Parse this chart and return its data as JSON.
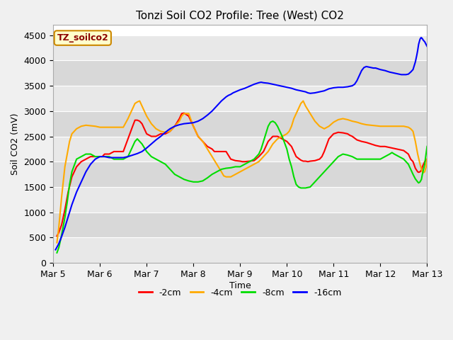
{
  "title": "Tonzi Soil CO2 Profile: Tree (West) CO2",
  "xlabel": "Time",
  "ylabel": "Soil CO2 (mV)",
  "xlim": [
    0,
    8.0
  ],
  "ylim": [
    0,
    4700
  ],
  "yticks": [
    0,
    500,
    1000,
    1500,
    2000,
    2500,
    3000,
    3500,
    4000,
    4500
  ],
  "xtick_labels": [
    "Mar 5",
    "Mar 6",
    "Mar 7",
    "Mar 8",
    "Mar 9",
    "Mar 10",
    "Mar 11",
    "Mar 12",
    "Mar 13"
  ],
  "xtick_positions": [
    0,
    1,
    2,
    3,
    4,
    5,
    6,
    7,
    8
  ],
  "fig_bg_color": "#f0f0f0",
  "plot_bg_color": "#ffffff",
  "band_colors": [
    "#e8e8e8",
    "#d8d8d8"
  ],
  "legend_label": "TZ_soilco2",
  "legend_box_color": "#ffffcc",
  "legend_box_edge": "#cc8800",
  "colors": {
    "2cm": "#ff0000",
    "4cm": "#ffaa00",
    "8cm": "#00dd00",
    "16cm": "#0000ff"
  },
  "series": {
    "2cm": [
      [
        0.08,
        530
      ],
      [
        0.12,
        600
      ],
      [
        0.18,
        750
      ],
      [
        0.25,
        1050
      ],
      [
        0.32,
        1400
      ],
      [
        0.4,
        1700
      ],
      [
        0.5,
        1900
      ],
      [
        0.6,
        2000
      ],
      [
        0.7,
        2050
      ],
      [
        0.8,
        2100
      ],
      [
        0.9,
        2100
      ],
      [
        1.0,
        2100
      ],
      [
        1.05,
        2100
      ],
      [
        1.1,
        2150
      ],
      [
        1.2,
        2150
      ],
      [
        1.3,
        2200
      ],
      [
        1.4,
        2200
      ],
      [
        1.5,
        2200
      ],
      [
        1.6,
        2450
      ],
      [
        1.7,
        2700
      ],
      [
        1.75,
        2820
      ],
      [
        1.8,
        2820
      ],
      [
        1.85,
        2800
      ],
      [
        1.9,
        2750
      ],
      [
        2.0,
        2550
      ],
      [
        2.1,
        2500
      ],
      [
        2.2,
        2500
      ],
      [
        2.3,
        2550
      ],
      [
        2.4,
        2550
      ],
      [
        2.5,
        2600
      ],
      [
        2.6,
        2700
      ],
      [
        2.7,
        2850
      ],
      [
        2.75,
        2950
      ],
      [
        2.8,
        2960
      ],
      [
        2.9,
        2900
      ],
      [
        3.0,
        2700
      ],
      [
        3.1,
        2500
      ],
      [
        3.2,
        2400
      ],
      [
        3.3,
        2300
      ],
      [
        3.4,
        2250
      ],
      [
        3.45,
        2200
      ],
      [
        3.5,
        2200
      ],
      [
        3.55,
        2200
      ],
      [
        3.6,
        2200
      ],
      [
        3.7,
        2200
      ],
      [
        3.8,
        2050
      ],
      [
        3.9,
        2020
      ],
      [
        4.0,
        2010
      ],
      [
        4.05,
        2000
      ],
      [
        4.1,
        2000
      ],
      [
        4.2,
        2010
      ],
      [
        4.3,
        2020
      ],
      [
        4.4,
        2100
      ],
      [
        4.5,
        2200
      ],
      [
        4.6,
        2400
      ],
      [
        4.7,
        2500
      ],
      [
        4.8,
        2500
      ],
      [
        4.9,
        2450
      ],
      [
        5.0,
        2400
      ],
      [
        5.05,
        2350
      ],
      [
        5.1,
        2300
      ],
      [
        5.15,
        2200
      ],
      [
        5.2,
        2100
      ],
      [
        5.3,
        2030
      ],
      [
        5.35,
        2010
      ],
      [
        5.4,
        2010
      ],
      [
        5.45,
        2000
      ],
      [
        5.5,
        2010
      ],
      [
        5.6,
        2020
      ],
      [
        5.7,
        2050
      ],
      [
        5.75,
        2100
      ],
      [
        5.8,
        2200
      ],
      [
        5.9,
        2450
      ],
      [
        6.0,
        2550
      ],
      [
        6.1,
        2580
      ],
      [
        6.2,
        2570
      ],
      [
        6.3,
        2550
      ],
      [
        6.35,
        2520
      ],
      [
        6.4,
        2500
      ],
      [
        6.5,
        2430
      ],
      [
        6.6,
        2400
      ],
      [
        6.7,
        2380
      ],
      [
        6.8,
        2350
      ],
      [
        6.9,
        2320
      ],
      [
        7.0,
        2300
      ],
      [
        7.1,
        2300
      ],
      [
        7.2,
        2280
      ],
      [
        7.3,
        2260
      ],
      [
        7.4,
        2240
      ],
      [
        7.5,
        2220
      ],
      [
        7.6,
        2150
      ],
      [
        7.65,
        2050
      ],
      [
        7.7,
        2000
      ],
      [
        7.75,
        1870
      ],
      [
        7.8,
        1800
      ],
      [
        7.82,
        1790
      ],
      [
        7.85,
        1800
      ],
      [
        7.88,
        1830
      ],
      [
        7.9,
        1900
      ],
      [
        7.95,
        2000
      ],
      [
        8.0,
        2050
      ]
    ],
    "4cm": [
      [
        0.08,
        400
      ],
      [
        0.12,
        700
      ],
      [
        0.18,
        1300
      ],
      [
        0.25,
        1900
      ],
      [
        0.3,
        2150
      ],
      [
        0.35,
        2400
      ],
      [
        0.4,
        2550
      ],
      [
        0.5,
        2650
      ],
      [
        0.6,
        2700
      ],
      [
        0.7,
        2720
      ],
      [
        0.8,
        2710
      ],
      [
        0.9,
        2700
      ],
      [
        1.0,
        2680
      ],
      [
        1.1,
        2680
      ],
      [
        1.2,
        2680
      ],
      [
        1.3,
        2680
      ],
      [
        1.4,
        2680
      ],
      [
        1.5,
        2680
      ],
      [
        1.6,
        2850
      ],
      [
        1.7,
        3050
      ],
      [
        1.75,
        3150
      ],
      [
        1.8,
        3180
      ],
      [
        1.85,
        3200
      ],
      [
        1.9,
        3100
      ],
      [
        2.0,
        2900
      ],
      [
        2.1,
        2750
      ],
      [
        2.2,
        2650
      ],
      [
        2.3,
        2600
      ],
      [
        2.4,
        2580
      ],
      [
        2.5,
        2600
      ],
      [
        2.6,
        2700
      ],
      [
        2.7,
        2800
      ],
      [
        2.75,
        2900
      ],
      [
        2.8,
        2950
      ],
      [
        2.9,
        2950
      ],
      [
        3.0,
        2700
      ],
      [
        3.1,
        2500
      ],
      [
        3.2,
        2400
      ],
      [
        3.3,
        2250
      ],
      [
        3.4,
        2100
      ],
      [
        3.5,
        1950
      ],
      [
        3.6,
        1800
      ],
      [
        3.65,
        1720
      ],
      [
        3.7,
        1700
      ],
      [
        3.8,
        1700
      ],
      [
        3.9,
        1750
      ],
      [
        4.0,
        1800
      ],
      [
        4.1,
        1850
      ],
      [
        4.2,
        1900
      ],
      [
        4.3,
        1950
      ],
      [
        4.4,
        2000
      ],
      [
        4.5,
        2100
      ],
      [
        4.6,
        2200
      ],
      [
        4.7,
        2350
      ],
      [
        4.8,
        2450
      ],
      [
        4.9,
        2500
      ],
      [
        5.0,
        2550
      ],
      [
        5.05,
        2600
      ],
      [
        5.1,
        2700
      ],
      [
        5.15,
        2850
      ],
      [
        5.2,
        2950
      ],
      [
        5.25,
        3050
      ],
      [
        5.3,
        3150
      ],
      [
        5.35,
        3200
      ],
      [
        5.4,
        3100
      ],
      [
        5.5,
        2950
      ],
      [
        5.6,
        2800
      ],
      [
        5.7,
        2700
      ],
      [
        5.8,
        2650
      ],
      [
        5.9,
        2700
      ],
      [
        6.0,
        2780
      ],
      [
        6.1,
        2830
      ],
      [
        6.2,
        2850
      ],
      [
        6.3,
        2830
      ],
      [
        6.4,
        2800
      ],
      [
        6.5,
        2780
      ],
      [
        6.6,
        2750
      ],
      [
        6.7,
        2730
      ],
      [
        6.8,
        2720
      ],
      [
        6.9,
        2710
      ],
      [
        7.0,
        2700
      ],
      [
        7.1,
        2700
      ],
      [
        7.2,
        2700
      ],
      [
        7.3,
        2700
      ],
      [
        7.4,
        2700
      ],
      [
        7.5,
        2700
      ],
      [
        7.6,
        2680
      ],
      [
        7.65,
        2650
      ],
      [
        7.7,
        2600
      ],
      [
        7.75,
        2400
      ],
      [
        7.8,
        2150
      ],
      [
        7.85,
        1950
      ],
      [
        7.88,
        1850
      ],
      [
        7.9,
        1800
      ],
      [
        7.92,
        1780
      ],
      [
        7.95,
        1800
      ],
      [
        7.98,
        1900
      ],
      [
        8.0,
        2050
      ]
    ],
    "8cm": [
      [
        0.08,
        200
      ],
      [
        0.12,
        300
      ],
      [
        0.18,
        550
      ],
      [
        0.25,
        900
      ],
      [
        0.3,
        1200
      ],
      [
        0.35,
        1550
      ],
      [
        0.4,
        1800
      ],
      [
        0.5,
        2050
      ],
      [
        0.6,
        2100
      ],
      [
        0.7,
        2150
      ],
      [
        0.8,
        2150
      ],
      [
        0.9,
        2100
      ],
      [
        1.0,
        2100
      ],
      [
        1.1,
        2100
      ],
      [
        1.2,
        2100
      ],
      [
        1.3,
        2050
      ],
      [
        1.4,
        2050
      ],
      [
        1.5,
        2050
      ],
      [
        1.6,
        2100
      ],
      [
        1.7,
        2300
      ],
      [
        1.75,
        2400
      ],
      [
        1.8,
        2450
      ],
      [
        1.9,
        2350
      ],
      [
        2.0,
        2200
      ],
      [
        2.1,
        2100
      ],
      [
        2.2,
        2050
      ],
      [
        2.3,
        2000
      ],
      [
        2.4,
        1950
      ],
      [
        2.5,
        1850
      ],
      [
        2.6,
        1750
      ],
      [
        2.7,
        1700
      ],
      [
        2.8,
        1650
      ],
      [
        2.9,
        1620
      ],
      [
        3.0,
        1600
      ],
      [
        3.1,
        1600
      ],
      [
        3.2,
        1620
      ],
      [
        3.3,
        1680
      ],
      [
        3.4,
        1750
      ],
      [
        3.5,
        1800
      ],
      [
        3.6,
        1850
      ],
      [
        3.7,
        1870
      ],
      [
        3.8,
        1880
      ],
      [
        3.9,
        1900
      ],
      [
        4.0,
        1900
      ],
      [
        4.1,
        1950
      ],
      [
        4.2,
        2000
      ],
      [
        4.3,
        2050
      ],
      [
        4.4,
        2150
      ],
      [
        4.45,
        2250
      ],
      [
        4.5,
        2400
      ],
      [
        4.55,
        2550
      ],
      [
        4.6,
        2700
      ],
      [
        4.65,
        2780
      ],
      [
        4.7,
        2800
      ],
      [
        4.75,
        2770
      ],
      [
        4.8,
        2700
      ],
      [
        4.9,
        2500
      ],
      [
        5.0,
        2250
      ],
      [
        5.05,
        2050
      ],
      [
        5.1,
        1900
      ],
      [
        5.15,
        1700
      ],
      [
        5.2,
        1550
      ],
      [
        5.25,
        1500
      ],
      [
        5.3,
        1480
      ],
      [
        5.4,
        1480
      ],
      [
        5.5,
        1500
      ],
      [
        5.55,
        1550
      ],
      [
        5.6,
        1600
      ],
      [
        5.7,
        1700
      ],
      [
        5.8,
        1800
      ],
      [
        5.9,
        1900
      ],
      [
        6.0,
        2000
      ],
      [
        6.1,
        2100
      ],
      [
        6.2,
        2150
      ],
      [
        6.3,
        2130
      ],
      [
        6.4,
        2100
      ],
      [
        6.5,
        2050
      ],
      [
        6.6,
        2050
      ],
      [
        6.7,
        2050
      ],
      [
        6.8,
        2050
      ],
      [
        6.9,
        2050
      ],
      [
        7.0,
        2050
      ],
      [
        7.1,
        2100
      ],
      [
        7.2,
        2150
      ],
      [
        7.25,
        2180
      ],
      [
        7.3,
        2150
      ],
      [
        7.4,
        2100
      ],
      [
        7.5,
        2050
      ],
      [
        7.6,
        1950
      ],
      [
        7.65,
        1850
      ],
      [
        7.7,
        1750
      ],
      [
        7.75,
        1660
      ],
      [
        7.8,
        1600
      ],
      [
        7.82,
        1580
      ],
      [
        7.85,
        1600
      ],
      [
        7.88,
        1650
      ],
      [
        7.9,
        1750
      ],
      [
        7.95,
        1950
      ],
      [
        8.0,
        2300
      ]
    ],
    "16cm": [
      [
        0.05,
        260
      ],
      [
        0.08,
        310
      ],
      [
        0.12,
        380
      ],
      [
        0.18,
        520
      ],
      [
        0.25,
        700
      ],
      [
        0.3,
        850
      ],
      [
        0.35,
        1000
      ],
      [
        0.4,
        1150
      ],
      [
        0.5,
        1400
      ],
      [
        0.6,
        1600
      ],
      [
        0.7,
        1800
      ],
      [
        0.8,
        1950
      ],
      [
        0.9,
        2050
      ],
      [
        1.0,
        2100
      ],
      [
        1.1,
        2100
      ],
      [
        1.2,
        2080
      ],
      [
        1.3,
        2080
      ],
      [
        1.4,
        2080
      ],
      [
        1.5,
        2080
      ],
      [
        1.6,
        2100
      ],
      [
        1.7,
        2130
      ],
      [
        1.8,
        2160
      ],
      [
        1.9,
        2200
      ],
      [
        2.0,
        2270
      ],
      [
        2.1,
        2350
      ],
      [
        2.2,
        2430
      ],
      [
        2.3,
        2500
      ],
      [
        2.4,
        2580
      ],
      [
        2.5,
        2650
      ],
      [
        2.6,
        2700
      ],
      [
        2.7,
        2730
      ],
      [
        2.8,
        2750
      ],
      [
        2.9,
        2760
      ],
      [
        3.0,
        2770
      ],
      [
        3.1,
        2800
      ],
      [
        3.2,
        2850
      ],
      [
        3.3,
        2920
      ],
      [
        3.4,
        3000
      ],
      [
        3.5,
        3100
      ],
      [
        3.6,
        3200
      ],
      [
        3.7,
        3280
      ],
      [
        3.75,
        3310
      ],
      [
        3.8,
        3330
      ],
      [
        3.85,
        3360
      ],
      [
        3.9,
        3380
      ],
      [
        4.0,
        3420
      ],
      [
        4.1,
        3450
      ],
      [
        4.2,
        3490
      ],
      [
        4.3,
        3530
      ],
      [
        4.4,
        3560
      ],
      [
        4.45,
        3570
      ],
      [
        4.5,
        3560
      ],
      [
        4.6,
        3550
      ],
      [
        4.7,
        3530
      ],
      [
        4.8,
        3510
      ],
      [
        4.9,
        3490
      ],
      [
        5.0,
        3470
      ],
      [
        5.1,
        3450
      ],
      [
        5.2,
        3420
      ],
      [
        5.3,
        3400
      ],
      [
        5.4,
        3380
      ],
      [
        5.45,
        3360
      ],
      [
        5.5,
        3350
      ],
      [
        5.6,
        3360
      ],
      [
        5.7,
        3380
      ],
      [
        5.8,
        3400
      ],
      [
        5.9,
        3440
      ],
      [
        6.0,
        3460
      ],
      [
        6.1,
        3470
      ],
      [
        6.2,
        3470
      ],
      [
        6.3,
        3480
      ],
      [
        6.4,
        3500
      ],
      [
        6.45,
        3530
      ],
      [
        6.5,
        3600
      ],
      [
        6.55,
        3700
      ],
      [
        6.6,
        3800
      ],
      [
        6.65,
        3860
      ],
      [
        6.7,
        3880
      ],
      [
        6.75,
        3870
      ],
      [
        6.8,
        3860
      ],
      [
        6.85,
        3850
      ],
      [
        6.9,
        3850
      ],
      [
        7.0,
        3820
      ],
      [
        7.1,
        3800
      ],
      [
        7.2,
        3770
      ],
      [
        7.3,
        3750
      ],
      [
        7.4,
        3730
      ],
      [
        7.45,
        3720
      ],
      [
        7.5,
        3720
      ],
      [
        7.55,
        3720
      ],
      [
        7.6,
        3730
      ],
      [
        7.65,
        3770
      ],
      [
        7.7,
        3820
      ],
      [
        7.75,
        3970
      ],
      [
        7.78,
        4100
      ],
      [
        7.8,
        4200
      ],
      [
        7.82,
        4320
      ],
      [
        7.85,
        4420
      ],
      [
        7.87,
        4450
      ],
      [
        7.88,
        4450
      ],
      [
        7.9,
        4430
      ],
      [
        7.92,
        4400
      ],
      [
        7.95,
        4370
      ],
      [
        8.0,
        4280
      ]
    ]
  }
}
